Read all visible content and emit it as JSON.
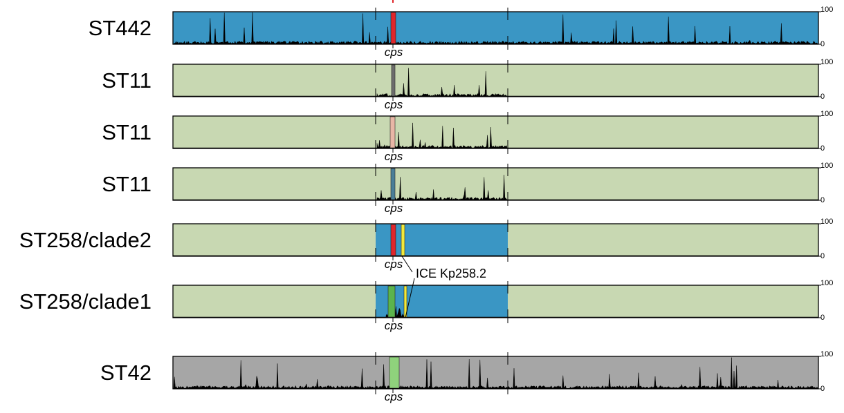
{
  "colors": {
    "blue": "#3a96c4",
    "green_bg": "#c8d8b2",
    "gray_bg": "#a6a6a6",
    "red": "#e0262b",
    "yellow": "#f2ea3a",
    "dark_gray": "#6c6c6c",
    "pink": "#e8b6a6",
    "steel": "#4a7e98",
    "green_dark": "#5bb44c",
    "green_light": "#8fd27c"
  },
  "scale": {
    "max": "100",
    "min": "0"
  },
  "tracks": [
    {
      "label": "ST442",
      "background": "blue",
      "segment": null,
      "markers": [
        "red"
      ],
      "signal": "full",
      "cps_label": "cps",
      "ice_label": null
    },
    {
      "label": "ST11",
      "background": "green_bg",
      "segment": null,
      "markers": [
        "dark_gray"
      ],
      "signal": "mid",
      "cps_label": "cps",
      "ice_label": null
    },
    {
      "label": "ST11",
      "background": "green_bg",
      "segment": null,
      "markers": [
        "pink"
      ],
      "signal": "mid",
      "cps_label": "cps",
      "ice_label": null
    },
    {
      "label": "ST11",
      "background": "green_bg",
      "segment": null,
      "markers": [
        "steel"
      ],
      "signal": "mid",
      "cps_label": "cps",
      "ice_label": null
    },
    {
      "label": "ST258/clade2",
      "background": "green_bg",
      "segment": "blue",
      "markers": [
        "red",
        "yellow"
      ],
      "signal": "none",
      "cps_label": "cps",
      "ice_label": "ICE Kp258.2"
    },
    {
      "label": "ST258/clade1",
      "background": "green_bg",
      "segment": "blue",
      "markers": [
        "green_dark",
        "yellow"
      ],
      "signal": "cluster",
      "cps_label": "cps",
      "ice_label": null
    },
    {
      "label": "ST42",
      "background": "gray_bg",
      "segment": null,
      "markers": [
        "green_light"
      ],
      "signal": "full",
      "cps_label": "cps",
      "ice_label": null
    }
  ]
}
